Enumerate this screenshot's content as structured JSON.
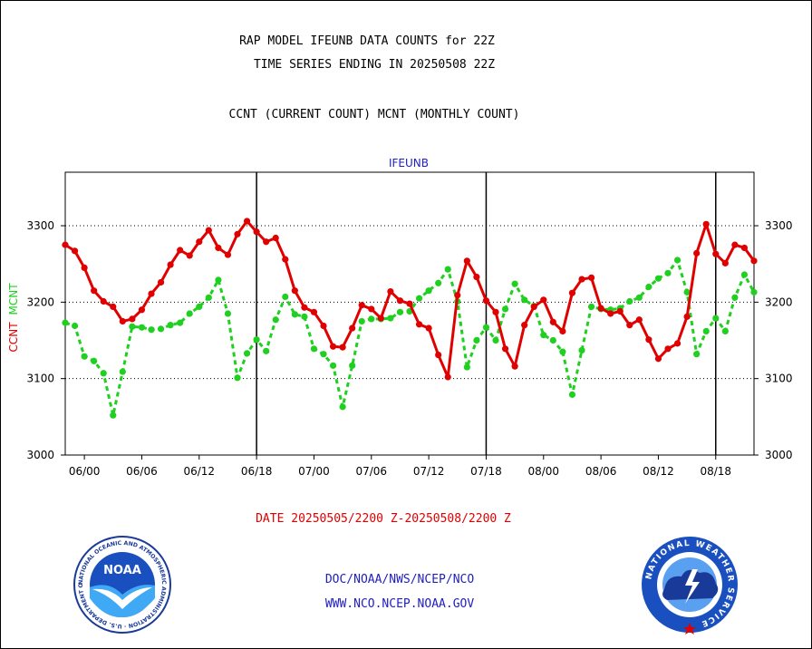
{
  "header": {
    "title_line1": "RAP MODEL IFEUNB DATA COUNTS for 22Z",
    "title_line2": "TIME SERIES ENDING IN 20250508 22Z",
    "subtitle": "CCNT (CURRENT COUNT) MCNT (MONTHLY COUNT)"
  },
  "footer": {
    "date_range": "DATE 20250505/2200 Z-20250508/2200 Z",
    "org": "DOC/NOAA/NWS/NCEP/NCO",
    "url": "WWW.NCO.NCEP.NOAA.GOV",
    "left_logo": "NOAA",
    "left_logo_ring": "NATIONAL OCEANIC AND ATMOSPHERIC ADMINISTRATION · U.S. DEPARTMENT OF COMMERCE",
    "right_logo_ring": "NATIONAL WEATHER SERVICE"
  },
  "colors": {
    "ccnt": "#e00000",
    "mcnt": "#20d020",
    "axis": "#000000",
    "label_blue": "#2020c0"
  },
  "chart_data": {
    "type": "line",
    "title": "IFEUNB",
    "ylabel_left": [
      "CCNT",
      "MCNT"
    ],
    "ylim": [
      3000,
      3370
    ],
    "yticks": [
      3000,
      3100,
      3200,
      3300
    ],
    "grid": "dotted horizontal at 3100, 3200, 3300",
    "xtick_labels": [
      "06/00",
      "06/06",
      "06/12",
      "06/18",
      "07/00",
      "07/06",
      "07/12",
      "07/18",
      "08/00",
      "08/06",
      "08/12",
      "08/18"
    ],
    "xtick_hours": [
      2,
      8,
      14,
      20,
      26,
      32,
      38,
      44,
      50,
      56,
      62,
      68
    ],
    "xlim_hours": [
      0,
      72
    ],
    "day_dividers_hours": [
      20,
      44,
      68
    ],
    "series": [
      {
        "name": "CCNT",
        "values": [
          3275,
          3267,
          3245,
          3215,
          3201,
          3194,
          3175,
          3178,
          3190,
          3211,
          3226,
          3249,
          3268,
          3261,
          3279,
          3294,
          3271,
          3262,
          3289,
          3306,
          3292,
          3279,
          3284,
          3256,
          3215,
          3193,
          3187,
          3169,
          3142,
          3141,
          3166,
          3196,
          3191,
          3179,
          3214,
          3202,
          3198,
          3171,
          3166,
          3131,
          3102,
          3209,
          3254,
          3233,
          3202,
          3187,
          3139,
          3116,
          3170,
          3194,
          3203,
          3174,
          3162,
          3212,
          3230,
          3232,
          3192,
          3185,
          3188,
          3170,
          3177,
          3151,
          3126,
          3139,
          3146,
          3181,
          3264,
          3302,
          3263,
          3251,
          3275,
          3271,
          3254
        ]
      },
      {
        "name": "MCNT",
        "values": [
          3173,
          3169,
          3129,
          3123,
          3107,
          3052,
          3109,
          3168,
          3167,
          3164,
          3165,
          3170,
          3173,
          3185,
          3194,
          3206,
          3229,
          3185,
          3101,
          3133,
          3151,
          3136,
          3177,
          3207,
          3184,
          3181,
          3139,
          3132,
          3117,
          3063,
          3117,
          3175,
          3178,
          3178,
          3179,
          3187,
          3188,
          3205,
          3215,
          3225,
          3243,
          3201,
          3115,
          3150,
          3167,
          3150,
          3191,
          3224,
          3203,
          3195,
          3157,
          3150,
          3135,
          3079,
          3137,
          3194,
          3191,
          3190,
          3192,
          3201,
          3206,
          3220,
          3231,
          3238,
          3255,
          3213,
          3132,
          3162,
          3179,
          3162,
          3206,
          3236,
          3213
        ]
      }
    ]
  }
}
